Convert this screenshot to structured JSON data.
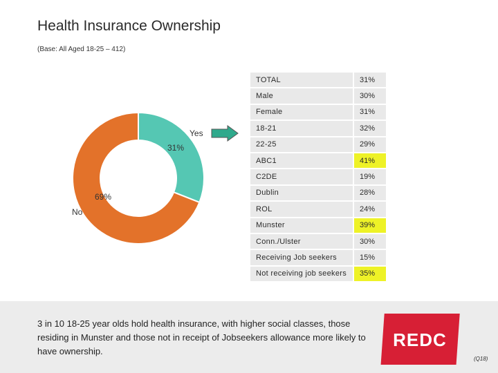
{
  "header": {
    "title": "Health Insurance Ownership",
    "subtitle": "(Base: All Aged 18-25 – 412)"
  },
  "chart_data": {
    "type": "pie",
    "variant": "donut",
    "slices": [
      {
        "label": "Yes",
        "value": 31,
        "value_label": "31%",
        "color": "#55c7b3"
      },
      {
        "label": "No",
        "value": 69,
        "value_label": "69%",
        "color": "#e3722a"
      }
    ]
  },
  "breakdown": {
    "rows": [
      {
        "label": "TOTAL",
        "value": "31%",
        "highlight": false
      },
      {
        "label": "Male",
        "value": "30%",
        "highlight": false
      },
      {
        "label": "Female",
        "value": "31%",
        "highlight": false
      },
      {
        "label": "18-21",
        "value": "32%",
        "highlight": false
      },
      {
        "label": "22-25",
        "value": "29%",
        "highlight": false
      },
      {
        "label": "ABC1",
        "value": "41%",
        "highlight": true
      },
      {
        "label": "C2DE",
        "value": "19%",
        "highlight": false
      },
      {
        "label": "Dublin",
        "value": "28%",
        "highlight": false
      },
      {
        "label": "ROL",
        "value": "24%",
        "highlight": false
      },
      {
        "label": "Munster",
        "value": "39%",
        "highlight": true
      },
      {
        "label": "Conn./Ulster",
        "value": "30%",
        "highlight": false
      },
      {
        "label": "Receiving Job seekers",
        "value": "15%",
        "highlight": false
      },
      {
        "label": "Not receiving job seekers",
        "value": "35%",
        "highlight": true
      }
    ]
  },
  "footer": {
    "summary": "3 in 10 18-25 year olds hold health insurance, with higher social classes, those residing in Munster and those not in receipt of Jobseekers allowance more likely to have ownership.",
    "logo_text": "REDC",
    "page_ref": "(Q18)"
  },
  "colors": {
    "yes": "#55c7b3",
    "no": "#e3722a",
    "highlight": "#eef227",
    "logo_red": "#d71f35",
    "arrow": "#2fa98c"
  }
}
